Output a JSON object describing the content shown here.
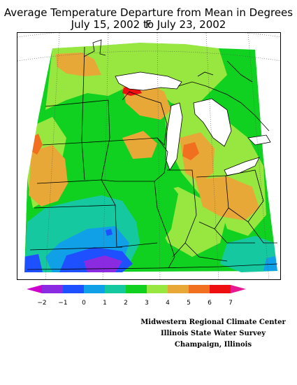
{
  "title": {
    "line1": "Average Temperature Departure from Mean in Degrees F",
    "line2": "July 15, 2002 to July 23, 2002"
  },
  "map": {
    "palette": {
      "magenta": "#cc00cc",
      "purple": "#8a2be2",
      "blue": "#1e50ff",
      "light_blue": "#10a0e8",
      "teal": "#16c8a0",
      "green": "#10d020",
      "light_green": "#98e640",
      "orange": "#e8a838",
      "dark_orange": "#f07020",
      "red": "#ee1010",
      "pink": "#e81890"
    }
  },
  "legend": {
    "tick_labels": [
      "−2",
      "−1",
      "0",
      "1",
      "2",
      "3",
      "4",
      "5",
      "6",
      "7"
    ],
    "colors": [
      "#cc00cc",
      "#8a2be2",
      "#1e50ff",
      "#10a0e8",
      "#16c8a0",
      "#10d020",
      "#98e640",
      "#e8a838",
      "#f07020",
      "#ee1010",
      "#e81890"
    ]
  },
  "credits": {
    "line1": "Midwestern Regional Climate Center",
    "line2": "Illinois State Water Survey",
    "line3": "Champaign, Illinois"
  }
}
